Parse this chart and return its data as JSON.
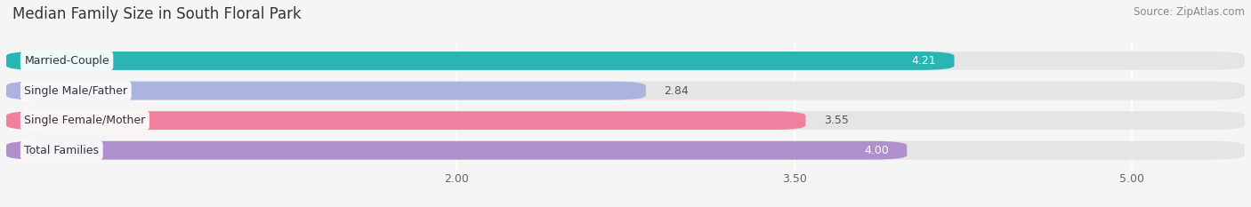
{
  "title": "Median Family Size in South Floral Park",
  "source": "Source: ZipAtlas.com",
  "categories": [
    "Married-Couple",
    "Single Male/Father",
    "Single Female/Mother",
    "Total Families"
  ],
  "values": [
    4.21,
    2.84,
    3.55,
    4.0
  ],
  "bar_colors": [
    "#2ab5b5",
    "#aab4df",
    "#f080a0",
    "#b090cc"
  ],
  "value_inside": [
    true,
    false,
    false,
    true
  ],
  "xmin": 0.0,
  "xmax": 5.5,
  "xlim_left": 0.0,
  "xlim_right": 5.5,
  "xticks": [
    2.0,
    3.5,
    5.0
  ],
  "xtick_labels": [
    "2.00",
    "3.50",
    "5.00"
  ],
  "bar_height": 0.62,
  "background_color": "#f5f5f5",
  "bar_background_color": "#e5e5e5",
  "title_fontsize": 12,
  "label_fontsize": 9,
  "value_fontsize": 9,
  "tick_fontsize": 9,
  "source_fontsize": 8.5,
  "rounding_size": 0.15
}
